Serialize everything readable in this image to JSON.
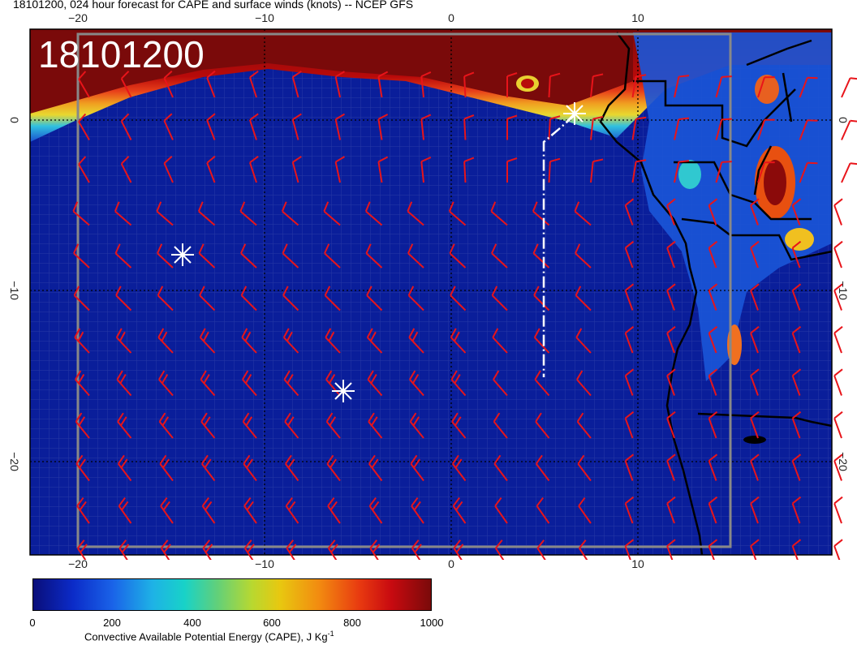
{
  "title": "18101200, 024 hour forecast for CAPE and surface winds (knots) -- NCEP GFS",
  "stamp": "18101200",
  "lon_ticks_top": [
    "−20",
    "−10",
    "0",
    "10"
  ],
  "lon_ticks_bottom": [
    "−20",
    "−10",
    "0",
    "10"
  ],
  "lat_ticks_left": [
    "0",
    "−10",
    "−20"
  ],
  "lat_ticks_right": [
    "0",
    "−10",
    "−20"
  ],
  "colorbar": {
    "labels": [
      "0",
      "200",
      "400",
      "600",
      "800",
      "1000"
    ],
    "title": "Convective Available Potential Energy (CAPE), J Kg",
    "title_sup": "-1"
  },
  "colors": {
    "ocean": "#0a1e9a",
    "cape_high": "#8b0000",
    "barb": "#e8141a",
    "coast": "#000000",
    "marker": "#ffffff"
  },
  "markers": [
    "star-north",
    "star-west",
    "star-south"
  ]
}
